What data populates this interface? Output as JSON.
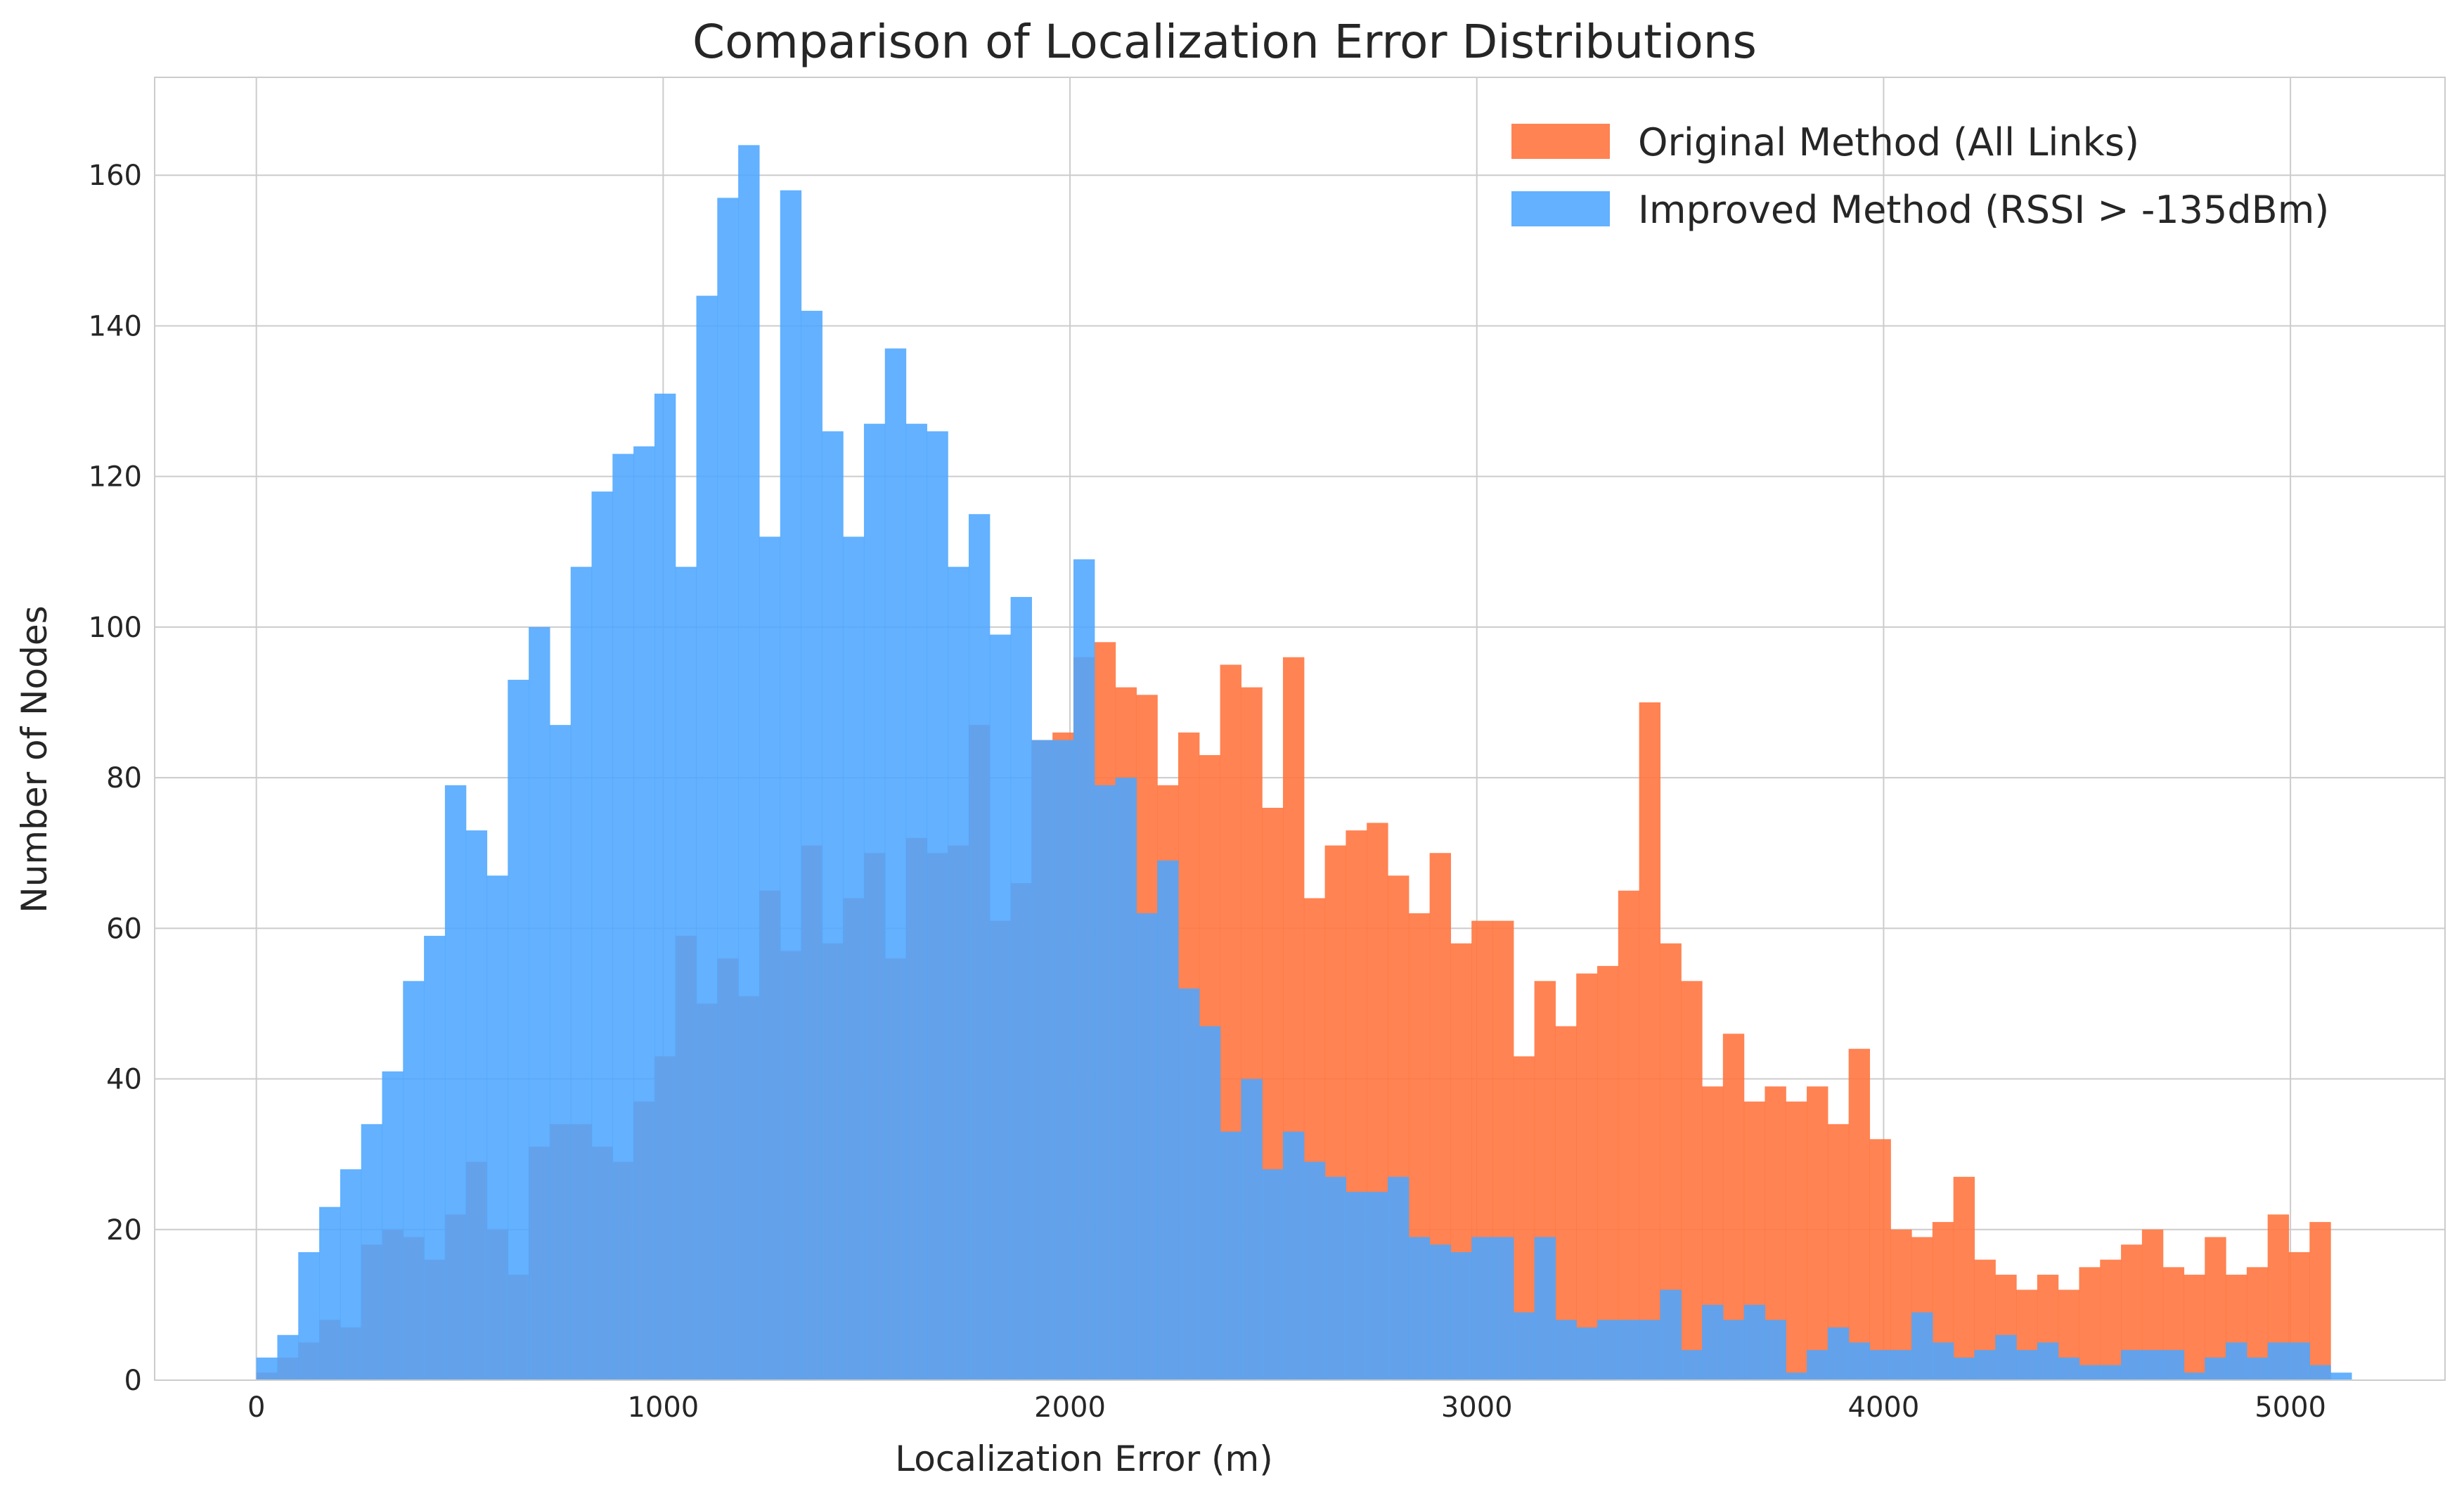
{
  "chart_data": {
    "type": "histogram",
    "title": "Comparison of Localization Error Distributions",
    "xlabel": "Localization Error (m)",
    "ylabel": "Number of Nodes",
    "xlim": [
      -250,
      5380
    ],
    "ylim": [
      0,
      173
    ],
    "x_ticks": [
      0,
      1000,
      2000,
      3000,
      4000,
      5000
    ],
    "y_ticks": [
      0,
      20,
      40,
      60,
      80,
      100,
      120,
      140,
      160
    ],
    "grid": true,
    "legend_position": "top-right",
    "bin_start": 0,
    "bin_width": 51.5,
    "series": [
      {
        "name": "Original Method (All Links)",
        "color": "#ff7540",
        "opacity": 0.9,
        "values": [
          1,
          3,
          5,
          8,
          7,
          18,
          20,
          19,
          16,
          22,
          29,
          20,
          14,
          31,
          34,
          34,
          31,
          29,
          37,
          43,
          59,
          50,
          56,
          51,
          65,
          57,
          71,
          58,
          64,
          70,
          56,
          72,
          70,
          71,
          87,
          61,
          66,
          85,
          86,
          96,
          98,
          92,
          91,
          79,
          86,
          83,
          95,
          92,
          76,
          96,
          64,
          71,
          73,
          74,
          67,
          62,
          70,
          58,
          61,
          61,
          43,
          53,
          47,
          54,
          55,
          65,
          90,
          58,
          53,
          39,
          46,
          37,
          39,
          37,
          39,
          34,
          44,
          32,
          20,
          19,
          21,
          27,
          16,
          14,
          12,
          14,
          12,
          15,
          16,
          18,
          20,
          15,
          14,
          19,
          14,
          15,
          22,
          17,
          21
        ]
      },
      {
        "name": "Improved Method (RSSI > -135dBm)",
        "color": "#4da6ff",
        "opacity": 0.88,
        "values": [
          3,
          6,
          17,
          23,
          28,
          34,
          41,
          53,
          59,
          79,
          73,
          67,
          93,
          100,
          87,
          108,
          118,
          123,
          124,
          131,
          108,
          144,
          157,
          164,
          112,
          158,
          142,
          126,
          112,
          127,
          137,
          127,
          126,
          108,
          115,
          99,
          104,
          85,
          85,
          109,
          79,
          80,
          62,
          69,
          52,
          47,
          33,
          40,
          28,
          33,
          29,
          27,
          25,
          25,
          27,
          19,
          18,
          17,
          19,
          19,
          9,
          19,
          8,
          7,
          8,
          8,
          8,
          12,
          4,
          10,
          8,
          10,
          8,
          1,
          4,
          7,
          5,
          4,
          4,
          9,
          5,
          3,
          4,
          6,
          4,
          5,
          3,
          2,
          2,
          4,
          4,
          4,
          1,
          3,
          5,
          3,
          5,
          5,
          2,
          1
        ]
      }
    ]
  }
}
